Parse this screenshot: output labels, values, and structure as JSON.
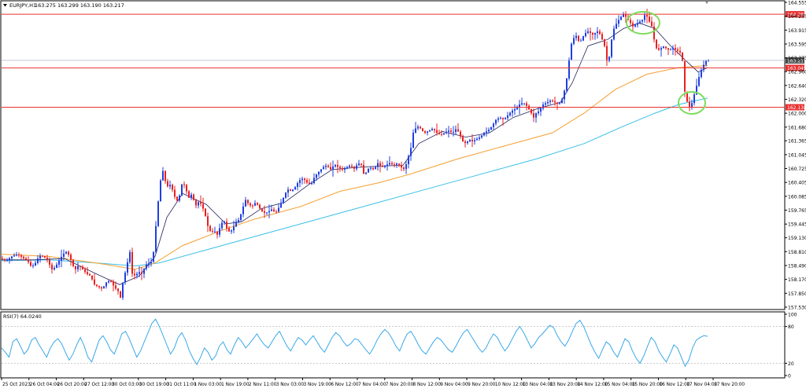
{
  "chart_data": [
    {
      "type": "candlestick",
      "symbol_label": "EURJPY,H1",
      "ohlc_label": "163.275 163.299 163.190 163.217",
      "y_ticks": [
        "164.555",
        "164.235",
        "163.915",
        "163.595",
        "163.275",
        "162.960",
        "162.640",
        "162.320",
        "162.000",
        "161.680",
        "161.365",
        "161.045",
        "160.725",
        "160.405",
        "160.085",
        "159.765",
        "159.445",
        "159.130",
        "158.810",
        "158.490",
        "158.170",
        "157.850",
        "157.530"
      ],
      "ylim": [
        157.53,
        164.555
      ],
      "x_ticks": [
        "25 Oct 2023",
        "26 Oct 04:00",
        "26 Oct 20:00",
        "27 Oct 12:00",
        "30 Oct 03:00",
        "30 Oct 19:00",
        "31 Oct 11:00",
        "1 Nov 03:00",
        "1 Nov 19:00",
        "2 Nov 11:00",
        "3 Nov 03:00",
        "3 Nov 19:00",
        "6 Nov 12:00",
        "7 Nov 04:00",
        "7 Nov 20:00",
        "8 Nov 12:00",
        "9 Nov 04:00",
        "9 Nov 20:00",
        "10 Nov 12:00",
        "13 Nov 04:00",
        "13 Nov 20:00",
        "14 Nov 12:00",
        "15 Nov 04:00",
        "15 Nov 20:00",
        "16 Nov 12:00",
        "17 Nov 04:00",
        "17 Nov 20:00"
      ],
      "horizontal_levels": [
        {
          "value": 164.282,
          "label": "164.282",
          "color": "#e83030"
        },
        {
          "value": 163.045,
          "label": "163.045",
          "color": "#e83030"
        },
        {
          "value": 162.138,
          "label": "162.138",
          "color": "#e83030"
        }
      ],
      "current_price": {
        "value": 163.217,
        "label": "163.217"
      },
      "price_path": [
        [
          0,
          158.65
        ],
        [
          8,
          158.6
        ],
        [
          15,
          158.7
        ],
        [
          22,
          158.75
        ],
        [
          28,
          158.68
        ],
        [
          35,
          158.6
        ],
        [
          40,
          158.45
        ],
        [
          45,
          158.55
        ],
        [
          50,
          158.72
        ],
        [
          55,
          158.7
        ],
        [
          60,
          158.62
        ],
        [
          66,
          158.4
        ],
        [
          70,
          158.45
        ],
        [
          75,
          158.6
        ],
        [
          80,
          158.75
        ],
        [
          85,
          158.82
        ],
        [
          90,
          158.62
        ],
        [
          95,
          158.38
        ],
        [
          100,
          158.5
        ],
        [
          105,
          158.4
        ],
        [
          110,
          158.3
        ],
        [
          115,
          158.25
        ],
        [
          120,
          158.05
        ],
        [
          125,
          158.0
        ],
        [
          130,
          157.95
        ],
        [
          135,
          158.1
        ],
        [
          140,
          158.15
        ],
        [
          145,
          158.0
        ],
        [
          150,
          157.9
        ],
        [
          153,
          157.75
        ],
        [
          156,
          158.1
        ],
        [
          160,
          158.4
        ],
        [
          163,
          158.65
        ],
        [
          165,
          158.8
        ],
        [
          168,
          158.3
        ],
        [
          172,
          158.25
        ],
        [
          176,
          158.35
        ],
        [
          180,
          158.3
        ],
        [
          185,
          158.5
        ],
        [
          190,
          158.55
        ],
        [
          194,
          158.6
        ],
        [
          197,
          159.2
        ],
        [
          200,
          159.8
        ],
        [
          203,
          160.3
        ],
        [
          206,
          160.75
        ],
        [
          209,
          160.5
        ],
        [
          212,
          160.3
        ],
        [
          216,
          160.35
        ],
        [
          220,
          160.2
        ],
        [
          224,
          159.95
        ],
        [
          228,
          160.1
        ],
        [
          232,
          160.45
        ],
        [
          236,
          160.25
        ],
        [
          240,
          160.05
        ],
        [
          244,
          160.15
        ],
        [
          248,
          159.85
        ],
        [
          252,
          159.95
        ],
        [
          256,
          159.9
        ],
        [
          260,
          159.7
        ],
        [
          264,
          159.4
        ],
        [
          268,
          159.25
        ],
        [
          272,
          159.3
        ],
        [
          276,
          159.2
        ],
        [
          280,
          159.4
        ],
        [
          284,
          159.55
        ],
        [
          288,
          159.35
        ],
        [
          292,
          159.25
        ],
        [
          296,
          159.35
        ],
        [
          300,
          159.5
        ],
        [
          304,
          159.55
        ],
        [
          308,
          159.8
        ],
        [
          312,
          160.0
        ],
        [
          316,
          159.9
        ],
        [
          320,
          159.85
        ],
        [
          325,
          159.95
        ],
        [
          330,
          159.8
        ],
        [
          335,
          159.7
        ],
        [
          340,
          159.72
        ],
        [
          345,
          159.78
        ],
        [
          350,
          159.7
        ],
        [
          355,
          159.85
        ],
        [
          360,
          160.05
        ],
        [
          365,
          160.25
        ],
        [
          370,
          160.2
        ],
        [
          375,
          160.3
        ],
        [
          380,
          160.45
        ],
        [
          385,
          160.5
        ],
        [
          390,
          160.4
        ],
        [
          395,
          160.35
        ],
        [
          400,
          160.55
        ],
        [
          405,
          160.65
        ],
        [
          410,
          160.75
        ],
        [
          415,
          160.8
        ],
        [
          420,
          160.7
        ],
        [
          425,
          160.82
        ],
        [
          430,
          160.75
        ],
        [
          435,
          160.7
        ],
        [
          440,
          160.75
        ],
        [
          445,
          160.8
        ],
        [
          450,
          160.72
        ],
        [
          455,
          160.85
        ],
        [
          460,
          160.8
        ],
        [
          463,
          160.5
        ],
        [
          466,
          160.7
        ],
        [
          470,
          160.75
        ],
        [
          475,
          160.7
        ],
        [
          480,
          160.85
        ],
        [
          485,
          160.75
        ],
        [
          490,
          160.8
        ],
        [
          495,
          160.85
        ],
        [
          500,
          160.8
        ],
        [
          505,
          160.85
        ],
        [
          510,
          160.75
        ],
        [
          514,
          160.7
        ],
        [
          518,
          160.95
        ],
        [
          522,
          161.2
        ],
        [
          525,
          161.55
        ],
        [
          528,
          161.65
        ],
        [
          532,
          161.7
        ],
        [
          536,
          161.6
        ],
        [
          540,
          161.55
        ],
        [
          545,
          161.6
        ],
        [
          550,
          161.65
        ],
        [
          555,
          161.55
        ],
        [
          560,
          161.5
        ],
        [
          565,
          161.55
        ],
        [
          570,
          161.6
        ],
        [
          575,
          161.55
        ],
        [
          580,
          161.65
        ],
        [
          584,
          161.5
        ],
        [
          588,
          161.35
        ],
        [
          592,
          161.3
        ],
        [
          596,
          161.4
        ],
        [
          600,
          161.35
        ],
        [
          605,
          161.4
        ],
        [
          610,
          161.45
        ],
        [
          615,
          161.55
        ],
        [
          620,
          161.6
        ],
        [
          625,
          161.7
        ],
        [
          630,
          161.85
        ],
        [
          635,
          161.9
        ],
        [
          640,
          161.85
        ],
        [
          645,
          161.95
        ],
        [
          650,
          162.05
        ],
        [
          655,
          162.1
        ],
        [
          660,
          162.2
        ],
        [
          665,
          162.25
        ],
        [
          670,
          162.15
        ],
        [
          675,
          162.0
        ],
        [
          678,
          161.9
        ],
        [
          681,
          162.0
        ],
        [
          685,
          162.05
        ],
        [
          690,
          162.2
        ],
        [
          695,
          162.25
        ],
        [
          700,
          162.3
        ],
        [
          705,
          162.25
        ],
        [
          710,
          162.2
        ],
        [
          715,
          162.35
        ],
        [
          718,
          162.6
        ],
        [
          721,
          162.9
        ],
        [
          724,
          163.4
        ],
        [
          727,
          163.7
        ],
        [
          730,
          163.75
        ],
        [
          733,
          163.8
        ],
        [
          736,
          163.6
        ],
        [
          740,
          163.75
        ],
        [
          744,
          163.85
        ],
        [
          748,
          163.9
        ],
        [
          752,
          163.8
        ],
        [
          756,
          163.85
        ],
        [
          760,
          163.9
        ],
        [
          764,
          163.75
        ],
        [
          768,
          163.55
        ],
        [
          771,
          163.2
        ],
        [
          774,
          163.3
        ],
        [
          777,
          163.7
        ],
        [
          780,
          163.95
        ],
        [
          784,
          164.1
        ],
        [
          788,
          164.2
        ],
        [
          792,
          164.28
        ],
        [
          796,
          164.2
        ],
        [
          800,
          164.1
        ],
        [
          804,
          164.0
        ],
        [
          808,
          164.05
        ],
        [
          812,
          164.1
        ],
        [
          816,
          164.15
        ],
        [
          820,
          164.3
        ],
        [
          824,
          164.15
        ],
        [
          828,
          164.0
        ],
        [
          831,
          163.7
        ],
        [
          834,
          163.5
        ],
        [
          838,
          163.45
        ],
        [
          842,
          163.55
        ],
        [
          846,
          163.5
        ],
        [
          850,
          163.45
        ],
        [
          855,
          163.5
        ],
        [
          860,
          163.45
        ],
        [
          864,
          163.4
        ],
        [
          867,
          163.2
        ],
        [
          869,
          162.7
        ],
        [
          871,
          162.3
        ],
        [
          874,
          162.25
        ],
        [
          877,
          162.1
        ],
        [
          880,
          162.3
        ],
        [
          883,
          162.5
        ],
        [
          886,
          162.7
        ],
        [
          889,
          162.9
        ],
        [
          892,
          163.05
        ],
        [
          895,
          163.15
        ],
        [
          897,
          163.22
        ]
      ],
      "ma_fast_path": [
        [
          0,
          158.62
        ],
        [
          40,
          158.62
        ],
        [
          80,
          158.65
        ],
        [
          120,
          158.3
        ],
        [
          150,
          158.05
        ],
        [
          175,
          158.25
        ],
        [
          195,
          158.7
        ],
        [
          210,
          159.6
        ],
        [
          230,
          160.15
        ],
        [
          260,
          159.9
        ],
        [
          285,
          159.45
        ],
        [
          305,
          159.5
        ],
        [
          330,
          159.8
        ],
        [
          360,
          159.95
        ],
        [
          390,
          160.35
        ],
        [
          420,
          160.7
        ],
        [
          450,
          160.75
        ],
        [
          480,
          160.78
        ],
        [
          510,
          160.8
        ],
        [
          530,
          161.3
        ],
        [
          560,
          161.58
        ],
        [
          590,
          161.45
        ],
        [
          620,
          161.55
        ],
        [
          650,
          161.9
        ],
        [
          680,
          162.1
        ],
        [
          710,
          162.25
        ],
        [
          725,
          162.7
        ],
        [
          745,
          163.55
        ],
        [
          770,
          163.7
        ],
        [
          790,
          163.95
        ],
        [
          810,
          164.08
        ],
        [
          830,
          163.95
        ],
        [
          850,
          163.55
        ],
        [
          870,
          163.2
        ],
        [
          885,
          162.95
        ],
        [
          897,
          163.05
        ]
      ],
      "ma_mid_path": [
        [
          0,
          158.75
        ],
        [
          60,
          158.7
        ],
        [
          120,
          158.55
        ],
        [
          170,
          158.4
        ],
        [
          195,
          158.55
        ],
        [
          230,
          158.95
        ],
        [
          280,
          159.3
        ],
        [
          320,
          159.55
        ],
        [
          380,
          159.85
        ],
        [
          430,
          160.2
        ],
        [
          480,
          160.4
        ],
        [
          520,
          160.6
        ],
        [
          580,
          160.95
        ],
        [
          640,
          161.25
        ],
        [
          700,
          161.55
        ],
        [
          740,
          162.0
        ],
        [
          780,
          162.55
        ],
        [
          820,
          162.9
        ],
        [
          860,
          163.05
        ],
        [
          897,
          163.1
        ]
      ],
      "ma_slow_path": [
        [
          0,
          158.6
        ],
        [
          60,
          158.62
        ],
        [
          120,
          158.55
        ],
        [
          170,
          158.48
        ],
        [
          200,
          158.55
        ],
        [
          260,
          158.85
        ],
        [
          320,
          159.15
        ],
        [
          380,
          159.45
        ],
        [
          440,
          159.75
        ],
        [
          500,
          160.05
        ],
        [
          560,
          160.35
        ],
        [
          620,
          160.65
        ],
        [
          680,
          160.95
        ],
        [
          740,
          161.3
        ],
        [
          790,
          161.7
        ],
        [
          830,
          162.0
        ],
        [
          860,
          162.2
        ],
        [
          897,
          162.35
        ]
      ]
    },
    {
      "type": "line",
      "label": "RSI(7) 64.0240",
      "y_ticks": [
        "100",
        "80",
        "20",
        "0"
      ],
      "ylim": [
        0,
        100
      ],
      "levels": [
        80,
        20
      ],
      "values": [
        45,
        38,
        30,
        55,
        60,
        48,
        35,
        42,
        58,
        62,
        50,
        40,
        30,
        45,
        55,
        60,
        52,
        38,
        25,
        35,
        50,
        62,
        48,
        30,
        22,
        40,
        58,
        65,
        55,
        42,
        35,
        50,
        68,
        72,
        60,
        45,
        30,
        40,
        55,
        70,
        85,
        92,
        80,
        65,
        50,
        35,
        45,
        62,
        70,
        58,
        40,
        28,
        18,
        30,
        45,
        38,
        25,
        32,
        48,
        55,
        42,
        35,
        50,
        62,
        55,
        45,
        52,
        60,
        68,
        58,
        50,
        45,
        55,
        65,
        72,
        60,
        48,
        40,
        52,
        62,
        58,
        50,
        58,
        65,
        55,
        45,
        38,
        50,
        62,
        70,
        65,
        55,
        48,
        52,
        60,
        58,
        50,
        42,
        35,
        45,
        58,
        68,
        75,
        70,
        60,
        48,
        40,
        55,
        68,
        72,
        62,
        50,
        40,
        35,
        45,
        55,
        62,
        58,
        50,
        42,
        38,
        48,
        60,
        70,
        75,
        65,
        55,
        45,
        38,
        45,
        58,
        68,
        62,
        50,
        40,
        48,
        60,
        72,
        80,
        70,
        58,
        45,
        52,
        62,
        68,
        75,
        82,
        78,
        65,
        55,
        48,
        58,
        72,
        85,
        90,
        80,
        65,
        50,
        38,
        28,
        42,
        55,
        50,
        38,
        30,
        45,
        60,
        55,
        40,
        28,
        20,
        32,
        48,
        62,
        55,
        40,
        30,
        22,
        35,
        50,
        45,
        30,
        15,
        25,
        45,
        58,
        62,
        65,
        64
      ]
    }
  ]
}
